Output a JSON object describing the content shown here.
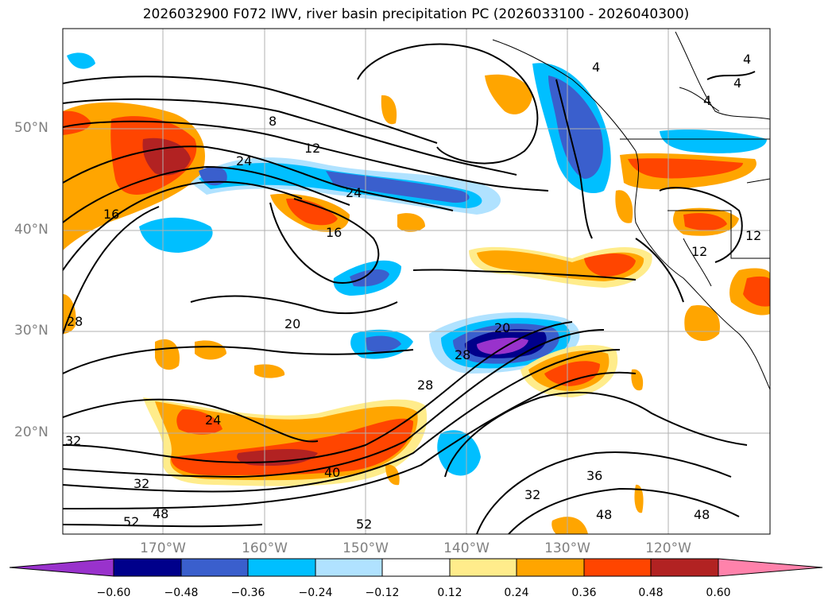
{
  "title": "2026032900 F072 IWV, river basin precipitation PC (2026033100 - 2026040300)",
  "lat_labels": [
    "50°N",
    "40°N",
    "30°N",
    "20°N"
  ],
  "lon_labels": [
    "170°W",
    "160°W",
    "150°W",
    "140°W",
    "130°W",
    "120°W"
  ],
  "colorbar": {
    "ticks": [
      "−0.60",
      "−0.48",
      "−0.36",
      "−0.24",
      "−0.12",
      "0.12",
      "0.24",
      "0.36",
      "0.48",
      "0.60"
    ],
    "colors": [
      "#9932cc",
      "#00008b",
      "#3a5fcd",
      "#00bfff",
      "#b0e2ff",
      "#ffffff",
      "#ffec8b",
      "#ffa500",
      "#ff4500",
      "#b22222",
      "#ff82ab"
    ]
  },
  "contour_labels": [
    "8",
    "12",
    "24",
    "24",
    "16",
    "16",
    "20",
    "28",
    "20",
    "28",
    "28",
    "24",
    "32",
    "32",
    "40",
    "52",
    "48",
    "52",
    "32",
    "36",
    "48",
    "48",
    "4",
    "4",
    "4",
    "4",
    "12",
    "12"
  ]
}
